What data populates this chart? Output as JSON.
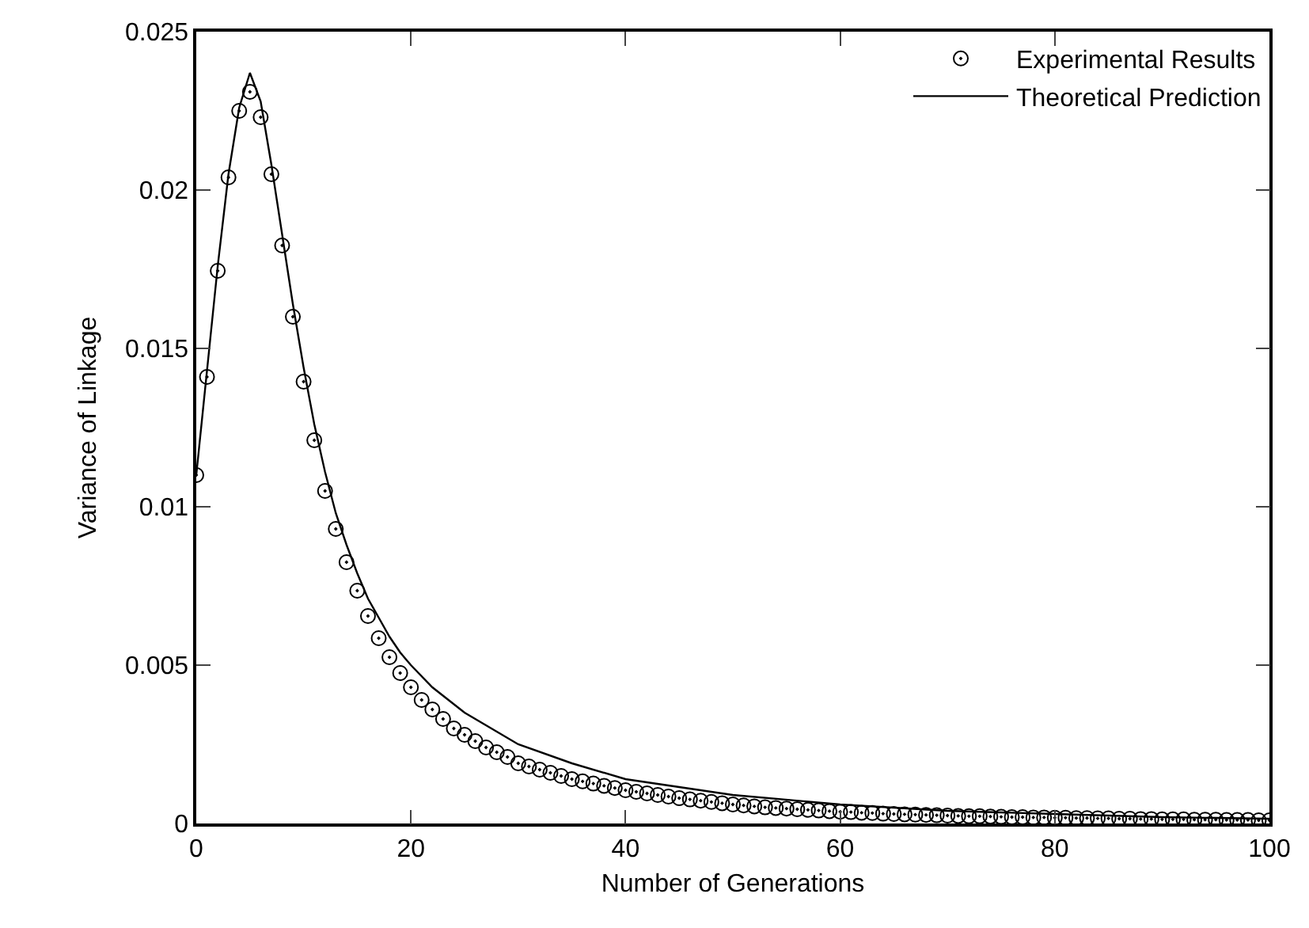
{
  "chart_data": {
    "type": "scatter",
    "xlabel": "Number of Generations",
    "ylabel": "Variance of Linkage",
    "xlim": [
      0,
      100
    ],
    "xticks": [
      0,
      20,
      40,
      60,
      80,
      100
    ],
    "ylim": [
      0,
      0.025
    ],
    "yticks": [
      0,
      0.005,
      0.01,
      0.015,
      0.02,
      0.025
    ],
    "grid": false,
    "legend": "top right",
    "series": [
      {
        "name": "Experimental Results",
        "marker": "circle",
        "color": "#000000",
        "x": [
          0,
          1,
          2,
          3,
          4,
          5,
          6,
          7,
          8,
          9,
          10,
          11,
          12,
          13,
          14,
          15,
          16,
          17,
          18,
          19,
          20,
          21,
          22,
          23,
          24,
          25,
          26,
          27,
          28,
          29,
          30,
          31,
          32,
          33,
          34,
          35,
          36,
          37,
          38,
          39,
          40,
          41,
          42,
          43,
          44,
          45,
          46,
          47,
          48,
          49,
          50,
          51,
          52,
          53,
          54,
          55,
          56,
          57,
          58,
          59,
          60,
          61,
          62,
          63,
          64,
          65,
          66,
          67,
          68,
          69,
          70,
          71,
          72,
          73,
          74,
          75,
          76,
          77,
          78,
          79,
          80,
          81,
          82,
          83,
          84,
          85,
          86,
          87,
          88,
          89,
          90,
          91,
          92,
          93,
          94,
          95,
          96,
          97,
          98,
          99,
          100
        ],
        "values": [
          0.011,
          0.0141,
          0.01745,
          0.0204,
          0.0225,
          0.0231,
          0.0223,
          0.0205,
          0.01825,
          0.016,
          0.01395,
          0.0121,
          0.0105,
          0.0093,
          0.00825,
          0.00735,
          0.00655,
          0.00585,
          0.00525,
          0.00475,
          0.0043,
          0.0039,
          0.0036,
          0.0033,
          0.003,
          0.0028,
          0.0026,
          0.0024,
          0.00225,
          0.0021,
          0.0019,
          0.0018,
          0.0017,
          0.0016,
          0.0015,
          0.0014,
          0.00133,
          0.00126,
          0.00119,
          0.00112,
          0.00105,
          0.001,
          0.00095,
          0.0009,
          0.00085,
          0.0008,
          0.00076,
          0.00072,
          0.00068,
          0.00064,
          0.0006,
          0.00057,
          0.00054,
          0.00051,
          0.00049,
          0.00047,
          0.00045,
          0.00043,
          0.00041,
          0.00039,
          0.00037,
          0.00036,
          0.00034,
          0.00033,
          0.00031,
          0.0003,
          0.00029,
          0.00028,
          0.00027,
          0.00026,
          0.00025,
          0.00024,
          0.00023,
          0.00023,
          0.00022,
          0.00021,
          0.0002,
          0.0002,
          0.00019,
          0.00019,
          0.00018,
          0.00018,
          0.00017,
          0.00017,
          0.00016,
          0.00016,
          0.00015,
          0.00015,
          0.00014,
          0.00014,
          0.00013,
          0.00013,
          0.00013,
          0.00012,
          0.00012,
          0.00012,
          0.00011,
          0.00011,
          0.00011,
          0.0001,
          0.0001
        ]
      },
      {
        "name": "Theoretical Prediction",
        "type": "line",
        "marker": "none",
        "line_style": "solid",
        "color": "#000000",
        "x": [
          0,
          1,
          2,
          3,
          4,
          5,
          6,
          7,
          8,
          9,
          10,
          11,
          12,
          13,
          14,
          15,
          16,
          17,
          18,
          19,
          20,
          22,
          25,
          30,
          35,
          40,
          50,
          60,
          70,
          80,
          90,
          100
        ],
        "values": [
          0.011,
          0.0143,
          0.0176,
          0.0205,
          0.0226,
          0.0237,
          0.0228,
          0.0208,
          0.0186,
          0.0164,
          0.0144,
          0.0126,
          0.0111,
          0.0098,
          0.0088,
          0.0079,
          0.0071,
          0.0065,
          0.0059,
          0.0054,
          0.005,
          0.0043,
          0.0035,
          0.0025,
          0.0019,
          0.0014,
          0.0009,
          0.0006,
          0.0004,
          0.0003,
          0.0002,
          0.00015
        ]
      }
    ]
  }
}
